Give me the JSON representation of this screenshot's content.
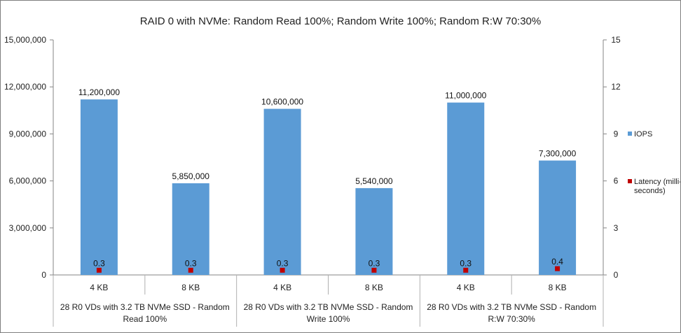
{
  "chart_data": {
    "type": "bar",
    "title": "RAID 0 with NVMe: Random Read 100%; Random Write 100%; Random R:W 70:30%",
    "groups": [
      {
        "label_line1": "28 R0 VDs with 3.2 TB NVMe SSD - Random",
        "label_line2": "Read 100%"
      },
      {
        "label_line1": "28 R0 VDs with 3.2 TB NVMe SSD - Random",
        "label_line2": "Write 100%"
      },
      {
        "label_line1": "28 R0 VDs with 3.2 TB NVMe SSD - Random",
        "label_line2": "R:W 70:30%"
      }
    ],
    "categories": [
      "4 KB",
      "8 KB",
      "4 KB",
      "8 KB",
      "4 KB",
      "8 KB"
    ],
    "series": [
      {
        "name": "IOPS",
        "kind": "bar",
        "axis": "left",
        "color": "#5b9bd5",
        "values": [
          11200000,
          5850000,
          10600000,
          5540000,
          11000000,
          7300000
        ],
        "labels": [
          "11,200,000",
          "5,850,000",
          "10,600,000",
          "5,540,000",
          "11,000,000",
          "7,300,000"
        ]
      },
      {
        "name_line1": "Latency (milli-",
        "name_line2": "seconds)",
        "kind": "marker",
        "axis": "right",
        "color": "#c00000",
        "values": [
          0.3,
          0.3,
          0.3,
          0.3,
          0.3,
          0.4
        ],
        "labels": [
          "0.3",
          "0.3",
          "0.3",
          "0.3",
          "0.3",
          "0.4"
        ]
      }
    ],
    "y_left": {
      "ylim": [
        0,
        15000000
      ],
      "ticks": [
        0,
        3000000,
        6000000,
        9000000,
        12000000,
        15000000
      ],
      "tick_labels": [
        "0",
        "3,000,000",
        "6,000,000",
        "9,000,000",
        "12,000,000",
        "15,000,000"
      ]
    },
    "y_right": {
      "ylim": [
        0,
        15
      ],
      "ticks": [
        0,
        3,
        6,
        9,
        12,
        15
      ],
      "tick_labels": [
        "0",
        "3",
        "6",
        "9",
        "12",
        "15"
      ]
    },
    "grid": false,
    "legend_position": "right"
  }
}
